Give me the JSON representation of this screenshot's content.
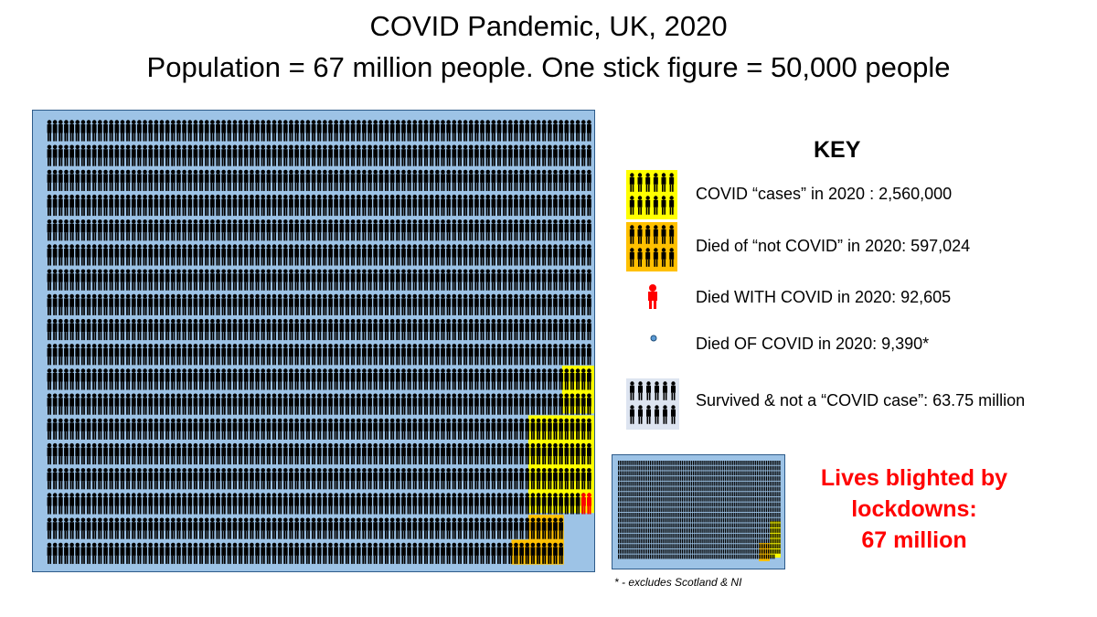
{
  "title": {
    "line1": "COVID Pandemic, UK, 2020",
    "line2": "Population = 67 million people. One stick figure = 50,000 people"
  },
  "key": {
    "heading": "KEY",
    "items": [
      {
        "icon": "yellow-figure-block-icon",
        "label": "COVID “cases” in 2020 : 2,560,000",
        "color": "#ffff00"
      },
      {
        "icon": "orange-figure-block-icon",
        "label": "Died of “not COVID” in 2020: 597,024",
        "color": "#ffc000"
      },
      {
        "icon": "red-figure-icon",
        "label": "Died WITH COVID in 2020: 92,605",
        "color": "#ff0000"
      },
      {
        "icon": "blue-dot-icon",
        "label": "Died OF COVID in 2020: 9,390*",
        "color": "#5b9bd5"
      },
      {
        "icon": "black-figure-block-icon",
        "label": "Survived & not a “COVID case”: 63.75 million",
        "color": "#000000"
      }
    ]
  },
  "callout": {
    "line1": "Lives blighted by",
    "line2": "lockdowns:",
    "line3": "67 million"
  },
  "footnote": "* - excludes Scotland & NI",
  "colors": {
    "panel_bg": "#9dc3e6",
    "figure": "#000000",
    "cases": "#ffff00",
    "not_covid": "#ffc000",
    "with_covid": "#ff0000",
    "of_covid": "#5b9bd5",
    "callout_text": "#ff0000"
  }
}
